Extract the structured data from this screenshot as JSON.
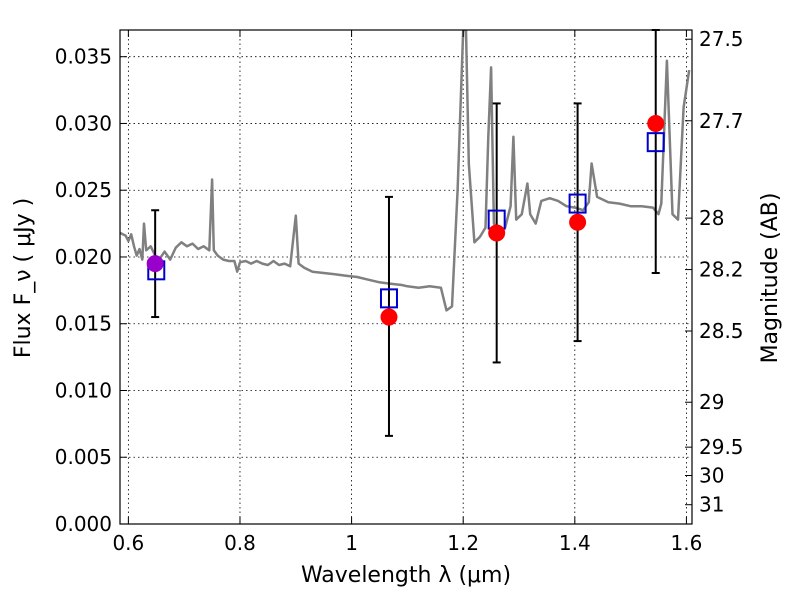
{
  "chart_data": {
    "type": "scatter",
    "title": "",
    "xlabel": "Wavelength  λ (μm)",
    "ylabel": "Flux  F_ν  ( μJy )",
    "ylabel_right": "Magnitude (AB)",
    "xlim": [
      0.585,
      1.61
    ],
    "ylim": [
      0.0,
      0.037
    ],
    "grid": true,
    "x_ticks": [
      0.6,
      0.8,
      1.0,
      1.2,
      1.4,
      1.6
    ],
    "x_tick_labels": [
      "0.6",
      "0.8",
      "1",
      "1.2",
      "1.4",
      "1.6"
    ],
    "y_ticks": [
      0.0,
      0.005,
      0.01,
      0.015,
      0.02,
      0.025,
      0.03,
      0.035
    ],
    "y_tick_labels": [
      "0.000",
      "0.005",
      "0.010",
      "0.015",
      "0.020",
      "0.025",
      "0.030",
      "0.035"
    ],
    "right_ticks": [
      {
        "label": "27.5",
        "mag": 27.5
      },
      {
        "label": "27.7",
        "mag": 27.7
      },
      {
        "label": "28",
        "mag": 28.0
      },
      {
        "label": "28.2",
        "mag": 28.2
      },
      {
        "label": "28.5",
        "mag": 28.5
      },
      {
        "label": "29",
        "mag": 29.0
      },
      {
        "label": "29.5",
        "mag": 29.5
      },
      {
        "label": "30",
        "mag": 30.0
      },
      {
        "label": "31",
        "mag": 31.0
      }
    ],
    "colors": {
      "spectrum": "#808080",
      "observed": "#ff0000",
      "model": "#0000cc",
      "errorbar": "#000000",
      "first_point": "#9900cc"
    },
    "spectrum": [
      [
        0.585,
        0.0218
      ],
      [
        0.595,
        0.0216
      ],
      [
        0.6,
        0.0212
      ],
      [
        0.605,
        0.0217
      ],
      [
        0.61,
        0.0208
      ],
      [
        0.615,
        0.0201
      ],
      [
        0.62,
        0.0206
      ],
      [
        0.625,
        0.0198
      ],
      [
        0.628,
        0.0225
      ],
      [
        0.632,
        0.0205
      ],
      [
        0.64,
        0.0208
      ],
      [
        0.648,
        0.0201
      ],
      [
        0.655,
        0.0198
      ],
      [
        0.665,
        0.0204
      ],
      [
        0.675,
        0.0198
      ],
      [
        0.685,
        0.0207
      ],
      [
        0.695,
        0.0211
      ],
      [
        0.705,
        0.0208
      ],
      [
        0.715,
        0.021
      ],
      [
        0.725,
        0.0206
      ],
      [
        0.735,
        0.0208
      ],
      [
        0.745,
        0.0205
      ],
      [
        0.75,
        0.0258
      ],
      [
        0.753,
        0.0205
      ],
      [
        0.76,
        0.0201
      ],
      [
        0.77,
        0.0198
      ],
      [
        0.78,
        0.0197
      ],
      [
        0.79,
        0.0197
      ],
      [
        0.795,
        0.0189
      ],
      [
        0.8,
        0.0196
      ],
      [
        0.81,
        0.0197
      ],
      [
        0.82,
        0.0195
      ],
      [
        0.83,
        0.0197
      ],
      [
        0.84,
        0.0195
      ],
      [
        0.85,
        0.0194
      ],
      [
        0.86,
        0.0197
      ],
      [
        0.87,
        0.0194
      ],
      [
        0.88,
        0.0195
      ],
      [
        0.89,
        0.0193
      ],
      [
        0.9,
        0.0231
      ],
      [
        0.905,
        0.0195
      ],
      [
        0.915,
        0.0192
      ],
      [
        0.93,
        0.0189
      ],
      [
        0.95,
        0.0188
      ],
      [
        0.97,
        0.0187
      ],
      [
        0.99,
        0.0186
      ],
      [
        1.01,
        0.0185
      ],
      [
        1.03,
        0.0183
      ],
      [
        1.05,
        0.0181
      ],
      [
        1.07,
        0.018
      ],
      [
        1.09,
        0.0179
      ],
      [
        1.1,
        0.0178
      ],
      [
        1.12,
        0.0177
      ],
      [
        1.14,
        0.0178
      ],
      [
        1.16,
        0.0177
      ],
      [
        1.17,
        0.016
      ],
      [
        1.18,
        0.0163
      ],
      [
        1.19,
        0.025
      ],
      [
        1.2,
        0.037
      ],
      [
        1.205,
        0.037
      ],
      [
        1.21,
        0.027
      ],
      [
        1.22,
        0.0211
      ],
      [
        1.23,
        0.0215
      ],
      [
        1.24,
        0.0222
      ],
      [
        1.245,
        0.029
      ],
      [
        1.25,
        0.0342
      ],
      [
        1.255,
        0.0225
      ],
      [
        1.265,
        0.0218
      ],
      [
        1.275,
        0.0222
      ],
      [
        1.285,
        0.0238
      ],
      [
        1.29,
        0.029
      ],
      [
        1.295,
        0.0228
      ],
      [
        1.305,
        0.0232
      ],
      [
        1.315,
        0.0255
      ],
      [
        1.32,
        0.0232
      ],
      [
        1.33,
        0.0225
      ],
      [
        1.34,
        0.0242
      ],
      [
        1.355,
        0.0244
      ],
      [
        1.37,
        0.0242
      ],
      [
        1.385,
        0.0238
      ],
      [
        1.4,
        0.0237
      ],
      [
        1.415,
        0.0235
      ],
      [
        1.425,
        0.0241
      ],
      [
        1.43,
        0.027
      ],
      [
        1.44,
        0.0245
      ],
      [
        1.46,
        0.0241
      ],
      [
        1.48,
        0.024
      ],
      [
        1.5,
        0.0238
      ],
      [
        1.52,
        0.0238
      ],
      [
        1.54,
        0.0237
      ],
      [
        1.55,
        0.0232
      ],
      [
        1.555,
        0.024
      ],
      [
        1.565,
        0.0347
      ],
      [
        1.575,
        0.0232
      ],
      [
        1.585,
        0.0228
      ],
      [
        1.595,
        0.0312
      ],
      [
        1.605,
        0.034
      ]
    ],
    "observed": [
      {
        "x": 0.648,
        "y": 0.0195,
        "err_lo": 0.0155,
        "err_hi": 0.0235
      },
      {
        "x": 1.067,
        "y": 0.0155,
        "err_lo": 0.0066,
        "err_hi": 0.0245
      },
      {
        "x": 1.26,
        "y": 0.0218,
        "err_lo": 0.0121,
        "err_hi": 0.0315
      },
      {
        "x": 1.405,
        "y": 0.0226,
        "err_lo": 0.0137,
        "err_hi": 0.0315
      },
      {
        "x": 1.545,
        "y": 0.03,
        "err_lo": 0.0188,
        "err_hi": 0.037
      }
    ],
    "model": [
      {
        "x": 0.65,
        "y": 0.019
      },
      {
        "x": 1.067,
        "y": 0.0169
      },
      {
        "x": 1.26,
        "y": 0.0228
      },
      {
        "x": 1.405,
        "y": 0.024
      },
      {
        "x": 1.545,
        "y": 0.0286
      }
    ]
  }
}
